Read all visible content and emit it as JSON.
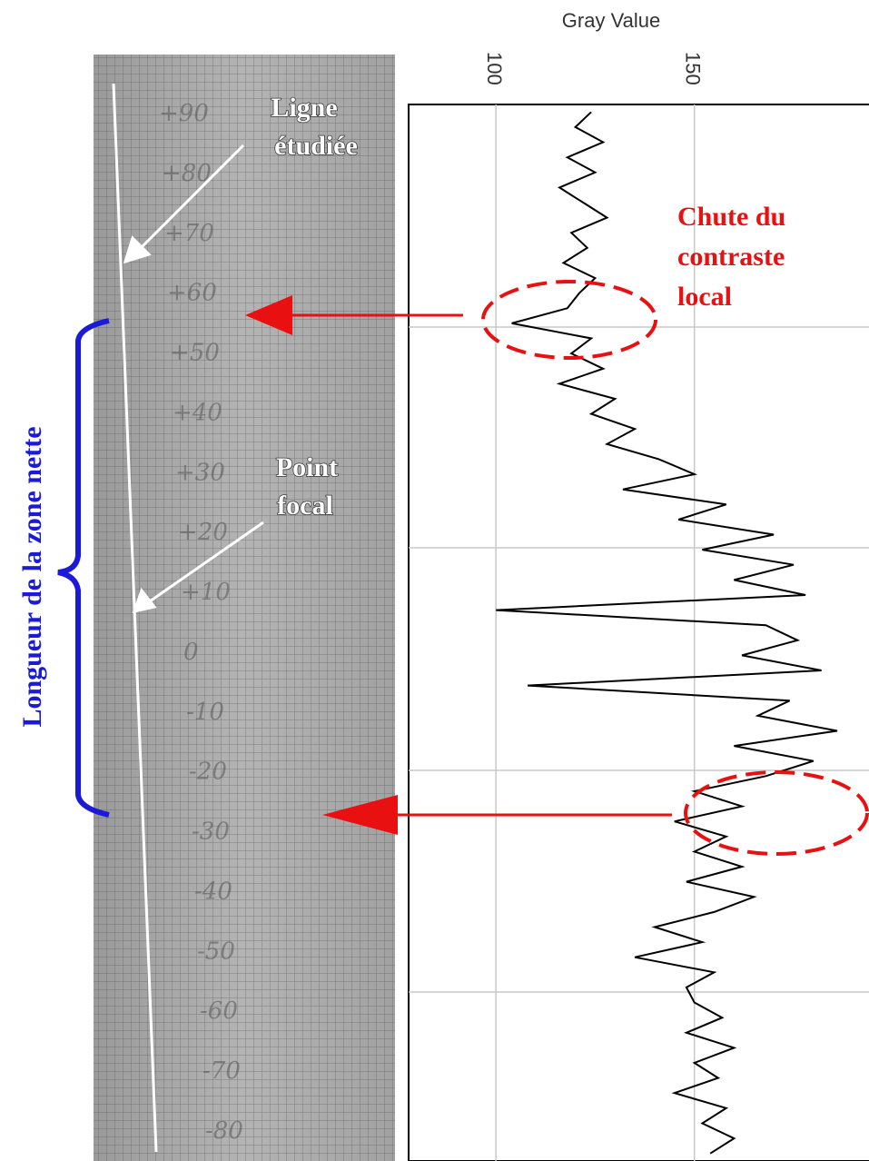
{
  "chart_data": {
    "type": "line",
    "orientation": "vertical",
    "title": "Gray Value",
    "xlim": [
      78,
      194
    ],
    "xticks": [
      100,
      150
    ],
    "grid": true,
    "color": "#000000",
    "values": [
      124,
      120,
      127,
      118,
      125,
      116,
      122,
      128,
      119,
      123,
      117,
      125,
      121,
      118,
      104,
      124,
      119,
      127,
      116,
      130,
      124,
      135,
      128,
      141,
      150,
      132,
      158,
      146,
      170,
      152,
      175,
      160,
      178,
      100,
      168,
      176,
      162,
      182,
      108,
      174,
      166,
      186,
      160,
      180,
      168,
      150,
      162,
      145,
      158,
      150,
      162,
      148,
      165,
      155,
      140,
      152,
      135,
      155,
      148,
      150,
      157,
      148,
      160,
      150,
      156,
      145,
      158,
      152,
      160,
      154
    ],
    "ruler_labels": [
      "+90",
      "+80",
      "+70",
      "+60",
      "+50",
      "+40",
      "+30",
      "+20",
      "+10",
      "0",
      "-10",
      "-20",
      "-30",
      "-40",
      "-50",
      "-60",
      "-70",
      "-80"
    ],
    "annotations": {
      "line_label": [
        "Ligne",
        "étudiée"
      ],
      "focal_label": [
        "Point",
        "focal"
      ],
      "contrast_label": [
        "Chute du",
        "contraste",
        "local"
      ],
      "zone_label": "Longueur de la zone nette"
    }
  }
}
